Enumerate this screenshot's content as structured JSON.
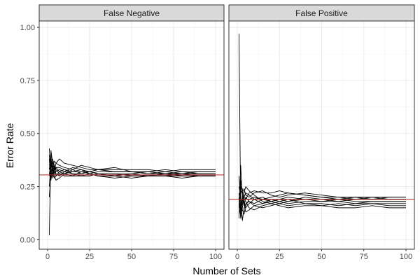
{
  "chart_data": {
    "type": "line",
    "xlabel": "Number of Sets",
    "ylabel": "Error Rate",
    "xlim": [
      1,
      100
    ],
    "ylim": [
      0,
      1
    ],
    "xticks": [
      0,
      25,
      50,
      75,
      100
    ],
    "yticks": [
      0,
      0.25,
      0.5,
      0.75,
      1
    ],
    "ytick_labels": [
      "0.00",
      "0.25",
      "0.50",
      "0.75",
      "1.00"
    ],
    "grid": true,
    "colors": {
      "line": "#000000",
      "reference": "#b22222",
      "strip_fill": "#d9d9d9",
      "grid": "#ebebeb",
      "border": "#333333"
    },
    "panels": [
      {
        "strip_label": "False Negative",
        "reference_line": 0.305,
        "x": [
          1,
          2,
          3,
          4,
          5,
          7,
          10,
          15,
          20,
          25,
          30,
          40,
          50,
          60,
          70,
          80,
          90,
          100
        ],
        "series": [
          {
            "values": [
              0.02,
              0.42,
              0.36,
              0.33,
              0.34,
              0.32,
              0.31,
              0.33,
              0.35,
              0.34,
              0.33,
              0.32,
              0.32,
              0.32,
              0.31,
              0.32,
              0.31,
              0.31
            ]
          },
          {
            "values": [
              0.38,
              0.28,
              0.34,
              0.37,
              0.36,
              0.35,
              0.34,
              0.33,
              0.31,
              0.32,
              0.33,
              0.32,
              0.32,
              0.31,
              0.32,
              0.31,
              0.31,
              0.31
            ]
          },
          {
            "values": [
              0.25,
              0.36,
              0.31,
              0.29,
              0.3,
              0.32,
              0.33,
              0.31,
              0.3,
              0.31,
              0.3,
              0.3,
              0.31,
              0.3,
              0.3,
              0.31,
              0.3,
              0.3
            ]
          },
          {
            "values": [
              0.43,
              0.3,
              0.38,
              0.35,
              0.33,
              0.31,
              0.3,
              0.3,
              0.32,
              0.32,
              0.31,
              0.31,
              0.3,
              0.3,
              0.31,
              0.3,
              0.3,
              0.3
            ]
          },
          {
            "values": [
              0.33,
              0.4,
              0.29,
              0.32,
              0.36,
              0.38,
              0.36,
              0.35,
              0.34,
              0.33,
              0.33,
              0.34,
              0.32,
              0.32,
              0.33,
              0.32,
              0.32,
              0.32
            ]
          },
          {
            "values": [
              0.2,
              0.32,
              0.35,
              0.3,
              0.28,
              0.29,
              0.31,
              0.32,
              0.33,
              0.32,
              0.31,
              0.31,
              0.31,
              0.32,
              0.31,
              0.31,
              0.31,
              0.31
            ]
          },
          {
            "values": [
              0.35,
              0.38,
              0.3,
              0.34,
              0.31,
              0.3,
              0.32,
              0.34,
              0.33,
              0.31,
              0.3,
              0.29,
              0.3,
              0.3,
              0.3,
              0.3,
              0.3,
              0.3
            ]
          },
          {
            "values": [
              0.3,
              0.34,
              0.37,
              0.33,
              0.32,
              0.33,
              0.32,
              0.31,
              0.31,
              0.32,
              0.33,
              0.33,
              0.33,
              0.33,
              0.32,
              0.33,
              0.33,
              0.33
            ]
          },
          {
            "values": [
              0.4,
              0.29,
              0.33,
              0.31,
              0.34,
              0.34,
              0.33,
              0.32,
              0.32,
              0.31,
              0.32,
              0.32,
              0.32,
              0.31,
              0.31,
              0.31,
              0.32,
              0.32
            ]
          },
          {
            "values": [
              0.31,
              0.36,
              0.32,
              0.35,
              0.3,
              0.31,
              0.31,
              0.3,
              0.3,
              0.3,
              0.31,
              0.3,
              0.29,
              0.3,
              0.3,
              0.29,
              0.3,
              0.3
            ]
          }
        ]
      },
      {
        "strip_label": "False Positive",
        "reference_line": 0.19,
        "x": [
          1,
          2,
          3,
          4,
          5,
          7,
          10,
          15,
          20,
          25,
          30,
          40,
          50,
          60,
          70,
          80,
          90,
          100
        ],
        "series": [
          {
            "values": [
              0.97,
              0.12,
              0.2,
              0.18,
              0.15,
              0.17,
              0.19,
              0.2,
              0.18,
              0.17,
              0.18,
              0.19,
              0.18,
              0.18,
              0.17,
              0.18,
              0.18,
              0.18
            ]
          },
          {
            "values": [
              0.1,
              0.35,
              0.18,
              0.2,
              0.22,
              0.21,
              0.19,
              0.17,
              0.18,
              0.19,
              0.2,
              0.19,
              0.19,
              0.18,
              0.19,
              0.19,
              0.19,
              0.19
            ]
          },
          {
            "values": [
              0.25,
              0.2,
              0.09,
              0.15,
              0.17,
              0.18,
              0.16,
              0.15,
              0.16,
              0.17,
              0.16,
              0.17,
              0.17,
              0.16,
              0.17,
              0.17,
              0.16,
              0.16
            ]
          },
          {
            "values": [
              0.15,
              0.25,
              0.22,
              0.24,
              0.21,
              0.2,
              0.22,
              0.23,
              0.21,
              0.2,
              0.21,
              0.22,
              0.21,
              0.2,
              0.2,
              0.2,
              0.2,
              0.2
            ]
          },
          {
            "values": [
              0.3,
              0.18,
              0.14,
              0.12,
              0.16,
              0.19,
              0.2,
              0.19,
              0.2,
              0.21,
              0.22,
              0.21,
              0.2,
              0.19,
              0.19,
              0.19,
              0.2,
              0.2
            ]
          },
          {
            "values": [
              0.12,
              0.16,
              0.2,
              0.19,
              0.18,
              0.15,
              0.14,
              0.16,
              0.17,
              0.16,
              0.15,
              0.16,
              0.16,
              0.17,
              0.16,
              0.17,
              0.17,
              0.17
            ]
          },
          {
            "values": [
              0.2,
              0.1,
              0.15,
              0.22,
              0.25,
              0.23,
              0.21,
              0.18,
              0.17,
              0.18,
              0.17,
              0.18,
              0.18,
              0.19,
              0.18,
              0.18,
              0.18,
              0.18
            ]
          },
          {
            "values": [
              0.18,
              0.22,
              0.24,
              0.17,
              0.13,
              0.14,
              0.16,
              0.17,
              0.19,
              0.18,
              0.19,
              0.17,
              0.16,
              0.15,
              0.15,
              0.16,
              0.15,
              0.15
            ]
          },
          {
            "values": [
              0.22,
              0.14,
              0.17,
              0.2,
              0.19,
              0.22,
              0.23,
              0.22,
              0.22,
              0.23,
              0.22,
              0.21,
              0.2,
              0.2,
              0.19,
              0.2,
              0.19,
              0.19
            ]
          },
          {
            "values": [
              0.16,
              0.28,
              0.21,
              0.16,
              0.2,
              0.18,
              0.17,
              0.19,
              0.18,
              0.19,
              0.18,
              0.2,
              0.19,
              0.19,
              0.2,
              0.19,
              0.19,
              0.19
            ]
          }
        ]
      }
    ]
  }
}
